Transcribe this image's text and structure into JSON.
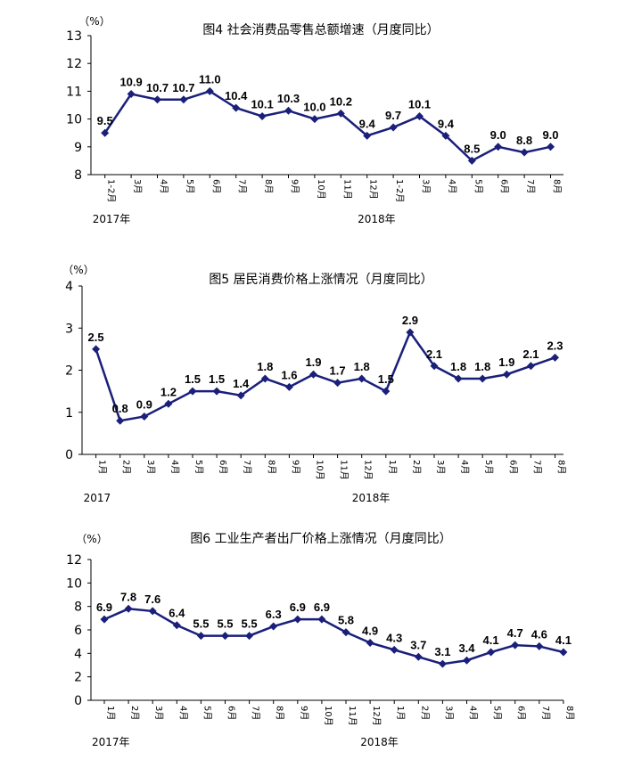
{
  "chart_data": [
    {
      "type": "line",
      "title": "图4   社会消费品零售总额增速（月度同比）",
      "unit": "（%）",
      "ylim": [
        8,
        13
      ],
      "yticks": [
        8,
        9,
        10,
        11,
        12,
        13
      ],
      "categories": [
        "1-2月",
        "3月",
        "4月",
        "5月",
        "6月",
        "7月",
        "8月",
        "9月",
        "10月",
        "11月",
        "12月",
        "1-2月",
        "3月",
        "4月",
        "5月",
        "6月",
        "7月",
        "8月"
      ],
      "values": [
        9.5,
        10.9,
        10.7,
        10.7,
        11.0,
        10.4,
        10.1,
        10.3,
        10.0,
        10.2,
        9.4,
        9.7,
        10.1,
        9.4,
        8.5,
        9.0,
        8.8,
        9.0
      ],
      "labels": [
        "9.5",
        "10.9",
        "10.7",
        "10.7",
        "11.0",
        "10.4",
        "10.1",
        "10.3",
        "10.0",
        "10.2",
        "9.4",
        "9.7",
        "10.1",
        "9.4",
        "8.5",
        "9.0",
        "8.8",
        "9.0"
      ],
      "year_labels": [
        {
          "text": "2017年",
          "index": 0
        },
        {
          "text": "2018年",
          "index": 11
        }
      ],
      "grid": false,
      "legend": "none"
    },
    {
      "type": "line",
      "title": "图5   居民消费价格上涨情况（月度同比）",
      "unit": "（%）",
      "ylim": [
        0,
        4
      ],
      "yticks": [
        0,
        1,
        2,
        3,
        4
      ],
      "categories": [
        "1月",
        "2月",
        "3月",
        "4月",
        "5月",
        "6月",
        "7月",
        "8月",
        "9月",
        "10月",
        "11月",
        "12月",
        "1月",
        "2月",
        "3月",
        "4月",
        "5月",
        "6月",
        "7月",
        "8月"
      ],
      "values": [
        2.5,
        0.8,
        0.9,
        1.2,
        1.5,
        1.5,
        1.4,
        1.8,
        1.6,
        1.9,
        1.7,
        1.8,
        1.5,
        2.9,
        2.1,
        1.8,
        1.8,
        1.9,
        2.1,
        2.3
      ],
      "labels": [
        "2.5",
        "0.8",
        "0.9",
        "1.2",
        "1.5",
        "1.5",
        "1.4",
        "1.8",
        "1.6",
        "1.9",
        "1.7",
        "1.8",
        "1.5",
        "2.9",
        "2.1",
        "1.8",
        "1.8",
        "1.9",
        "2.1",
        "2.3"
      ],
      "year_labels": [
        {
          "text": "2017",
          "index": 0
        },
        {
          "text": "2018年",
          "index": 12
        }
      ],
      "grid": false,
      "legend": "none"
    },
    {
      "type": "line",
      "title": "图6  工业生产者出厂价格上涨情况（月度同比）",
      "unit": "（%）",
      "ylim": [
        0,
        12
      ],
      "yticks": [
        0,
        2,
        4,
        6,
        8,
        10,
        12
      ],
      "categories": [
        "1月",
        "2月",
        "3月",
        "4月",
        "5月",
        "6月",
        "7月",
        "8月",
        "9月",
        "10月",
        "11月",
        "12月",
        "1月",
        "2月",
        "3月",
        "4月",
        "5月",
        "6月",
        "7月",
        "8月"
      ],
      "values": [
        6.9,
        7.8,
        7.6,
        6.4,
        5.5,
        5.5,
        5.5,
        6.3,
        6.9,
        6.9,
        5.8,
        4.9,
        4.3,
        3.7,
        3.1,
        3.4,
        4.1,
        4.7,
        4.6,
        4.1
      ],
      "labels": [
        "6.9",
        "7.8",
        "7.6",
        "6.4",
        "5.5",
        "5.5",
        "5.5",
        "6.3",
        "6.9",
        "6.9",
        "5.8",
        "4.9",
        "4.3",
        "3.7",
        "3.1",
        "3.4",
        "4.1",
        "4.7",
        "4.6",
        "4.1"
      ],
      "year_labels": [
        {
          "text": "2017年",
          "index": 0
        },
        {
          "text": "2018年",
          "index": 12
        }
      ],
      "grid": false,
      "legend": "none"
    }
  ]
}
